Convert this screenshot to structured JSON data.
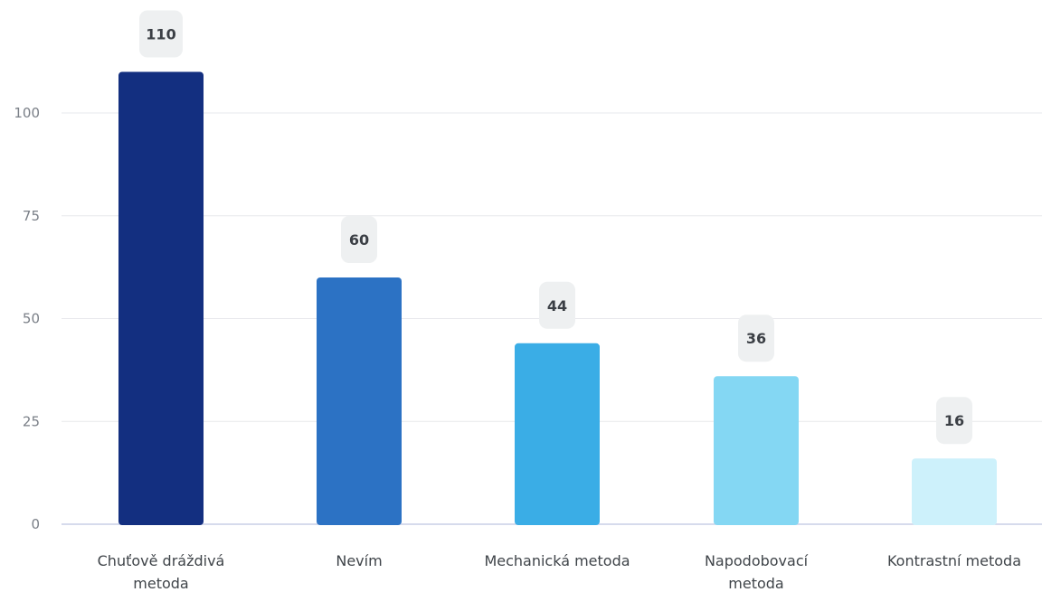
{
  "chart_data": {
    "type": "bar",
    "categories": [
      [
        "Chuťově dráždivá",
        "metoda"
      ],
      [
        "Nevím"
      ],
      [
        "Mechanická metoda"
      ],
      [
        "Napodobovací",
        "metoda"
      ],
      [
        "Kontrastní metoda"
      ]
    ],
    "values": [
      110,
      60,
      44,
      36,
      16
    ],
    "data_labels": [
      "110",
      "60",
      "44",
      "36",
      "16"
    ],
    "colors": [
      "#132f80",
      "#2c72c4",
      "#3aade6",
      "#84d7f3",
      "#cdf1fb"
    ],
    "y_ticks": [
      "0",
      "25",
      "50",
      "75",
      "100"
    ],
    "y_tick_values": [
      0,
      25,
      50,
      75,
      100
    ],
    "ylim": [
      0,
      125
    ],
    "grid": true,
    "legend": "none"
  }
}
